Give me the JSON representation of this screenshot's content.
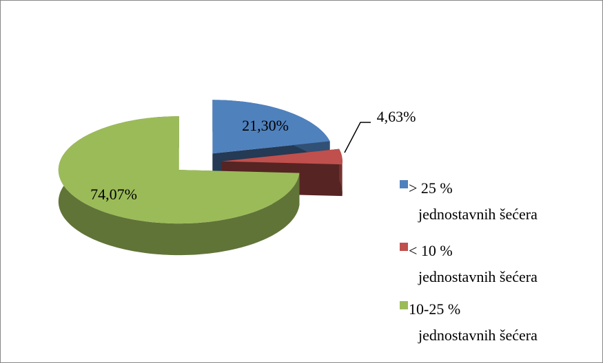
{
  "chart_data": {
    "type": "pie",
    "categories": [
      "> 25 % jednostavnih šećera",
      "< 10 % jednostavnih šećera",
      "10-25 % jednostavnih šećera"
    ],
    "values": [
      21.3,
      4.63,
      74.07
    ],
    "value_labels": [
      "21,30%",
      "4,63%",
      "74,07%"
    ],
    "colors": [
      "#4f81bd",
      "#c0504d",
      "#9bbb59"
    ],
    "legend": "right"
  }
}
